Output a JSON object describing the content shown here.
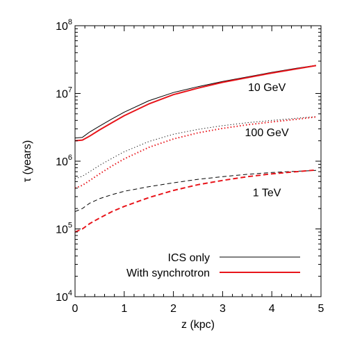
{
  "chart_data": {
    "type": "line",
    "xlabel": "z (kpc)",
    "ylabel": "τ (years)",
    "xlim": [
      0,
      5
    ],
    "ylim": [
      10000,
      100000000
    ],
    "yscale": "log",
    "grid": false,
    "x_ticks": [
      0,
      1,
      2,
      3,
      4,
      5
    ],
    "x_tick_labels": [
      "0",
      "1",
      "2",
      "3",
      "4",
      "5"
    ],
    "y_ticks": [
      10000,
      100000,
      1000000,
      10000000,
      100000000
    ],
    "y_tick_bases": [
      "10",
      "10",
      "10",
      "10",
      "10"
    ],
    "y_tick_exponents": [
      "4",
      "5",
      "6",
      "7",
      "8"
    ],
    "annotations": [
      {
        "text": "10 GeV",
        "x": 3.9,
        "y": 12500000
      },
      {
        "text": "100 GeV",
        "x": 3.9,
        "y": 2700000
      },
      {
        "text": "1 TeV",
        "x": 3.9,
        "y": 350000
      }
    ],
    "legend": {
      "position": "bottom-right",
      "entries": [
        {
          "label": "ICS only",
          "color": "#000000"
        },
        {
          "label": "With synchrotron",
          "color": "#e8141a"
        }
      ]
    },
    "series": [
      {
        "group": "ICS only",
        "energy": "10 GeV",
        "color": "#000000",
        "dash": "solid",
        "x": [
          0,
          0.15,
          0.3,
          0.5,
          0.75,
          1,
          1.5,
          2,
          2.5,
          3,
          3.5,
          4,
          4.5,
          4.9
        ],
        "y": [
          2200000,
          2250000,
          2700000,
          3300000,
          4200000,
          5300000,
          7800000,
          10300000,
          12600000,
          15000000,
          17500000,
          20500000,
          23500000,
          26000000
        ]
      },
      {
        "group": "With synchrotron",
        "energy": "10 GeV",
        "color": "#e8141a",
        "dash": "solid",
        "x": [
          0,
          0.15,
          0.3,
          0.5,
          0.75,
          1,
          1.5,
          2,
          2.5,
          3,
          3.5,
          4,
          4.5,
          4.9
        ],
        "y": [
          2000000,
          2050000,
          2350000,
          2900000,
          3700000,
          4700000,
          7000000,
          9600000,
          12000000,
          14600000,
          17100000,
          20000000,
          23000000,
          25800000
        ]
      },
      {
        "group": "ICS only",
        "energy": "100 GeV",
        "color": "#000000",
        "dash": "dotted",
        "x": [
          0,
          0.15,
          0.3,
          0.5,
          0.75,
          1,
          1.5,
          2,
          2.5,
          3,
          3.5,
          4,
          4.5,
          4.9
        ],
        "y": [
          550000,
          600000,
          700000,
          870000,
          1100000,
          1380000,
          1950000,
          2500000,
          2950000,
          3350000,
          3700000,
          4000000,
          4300000,
          4550000
        ]
      },
      {
        "group": "With synchrotron",
        "energy": "100 GeV",
        "color": "#e8141a",
        "dash": "dotted",
        "x": [
          0,
          0.15,
          0.3,
          0.5,
          0.75,
          1,
          1.5,
          2,
          2.5,
          3,
          3.5,
          4,
          4.5,
          4.9
        ],
        "y": [
          400000,
          440000,
          520000,
          650000,
          850000,
          1080000,
          1600000,
          2130000,
          2620000,
          3050000,
          3450000,
          3800000,
          4150000,
          4500000
        ]
      },
      {
        "group": "ICS only",
        "energy": "1 TeV",
        "color": "#000000",
        "dash": "dashed",
        "x": [
          0,
          0.15,
          0.3,
          0.5,
          0.75,
          1,
          1.5,
          2,
          2.5,
          3,
          3.5,
          4,
          4.5,
          4.9
        ],
        "y": [
          180000,
          200000,
          240000,
          280000,
          320000,
          360000,
          420000,
          480000,
          540000,
          590000,
          640000,
          680000,
          710000,
          730000
        ]
      },
      {
        "group": "With synchrotron",
        "energy": "1 TeV",
        "color": "#e8141a",
        "dash": "dashed",
        "x": [
          0,
          0.15,
          0.3,
          0.5,
          0.75,
          1,
          1.5,
          2,
          2.5,
          3,
          3.5,
          4,
          4.5,
          4.9
        ],
        "y": [
          90000,
          100000,
          120000,
          145000,
          180000,
          215000,
          290000,
          370000,
          450000,
          520000,
          590000,
          650000,
          700000,
          740000
        ]
      }
    ]
  }
}
